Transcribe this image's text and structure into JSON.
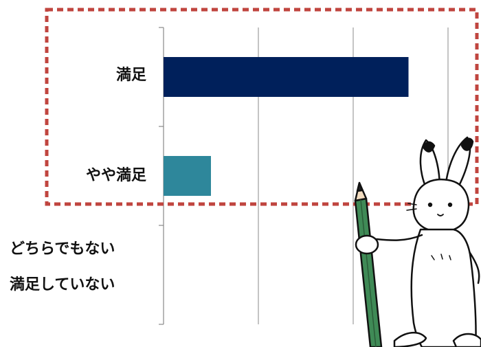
{
  "chart_data": {
    "type": "bar",
    "orientation": "horizontal",
    "categories": [
      "満足",
      "やや満足",
      "どちらでもない",
      "満足していない"
    ],
    "values": [
      62,
      12,
      0,
      0
    ],
    "xlim": [
      0,
      72
    ],
    "grid": true,
    "title": "",
    "xlabel": "",
    "ylabel": ""
  },
  "colors": {
    "bar_1": "#00205b",
    "bar_2": "#2e879b",
    "highlight_box": "#c0453f",
    "gridline": "#888888"
  },
  "decoration": {
    "icon": "rabbit-holding-pencil-icon"
  }
}
